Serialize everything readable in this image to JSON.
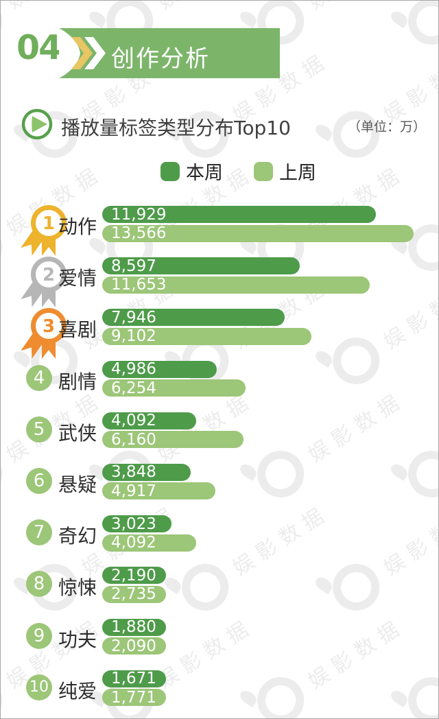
{
  "section": {
    "number": "04",
    "title": "创作分析",
    "banner_color": "#7CB56A",
    "number_color": "#6FAE5B",
    "chevron_yellow": "#E7C663",
    "chevron_white": "#FFFFFF"
  },
  "chart": {
    "icon": "play-icon",
    "title": "播放量标签类型分布Top10",
    "unit_label": "（单位：万）",
    "legend": [
      {
        "label": "本周",
        "color": "#4E9B4A"
      },
      {
        "label": "上周",
        "color": "#9CC678"
      }
    ]
  },
  "ranks": {
    "medal_colors": [
      "#EDB32C",
      "#B6B6B6",
      "#EE8C2F"
    ],
    "circle_color": "#9CC678",
    "labels": [
      "1",
      "2",
      "3",
      "4",
      "5",
      "6",
      "7",
      "8",
      "9",
      "10"
    ]
  },
  "chart_data": {
    "type": "bar",
    "orientation": "horizontal",
    "title": "播放量标签类型分布Top10",
    "unit": "万",
    "categories": [
      "动作",
      "爱情",
      "喜剧",
      "剧情",
      "武侠",
      "悬疑",
      "奇幻",
      "惊悚",
      "功夫",
      "纯爱"
    ],
    "series": [
      {
        "name": "本周",
        "color": "#4E9B4A",
        "values": [
          11929,
          8597,
          7946,
          4986,
          4092,
          3848,
          3023,
          2190,
          1880,
          1671
        ]
      },
      {
        "name": "上周",
        "color": "#9CC678",
        "values": [
          13566,
          11653,
          9102,
          6254,
          6160,
          4917,
          4092,
          2735,
          2090,
          1771
        ]
      }
    ],
    "value_format": "thousands-comma",
    "xmax": 13566,
    "legend_position": "top",
    "grid": false
  },
  "watermark": {
    "text": "娱影数据"
  }
}
